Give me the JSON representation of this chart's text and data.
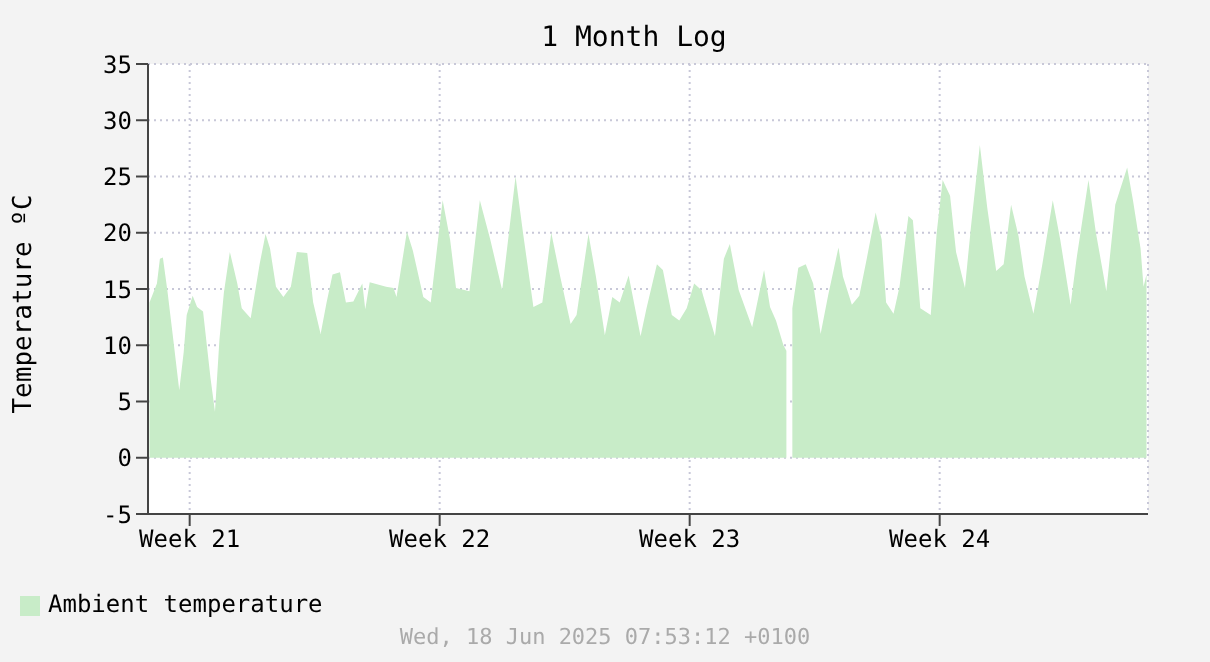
{
  "chart_data": {
    "type": "area",
    "title": "1 Month Log",
    "ylabel": "Temperature ºC",
    "annotations": [
      "Wed, 18 Jun 2025 07:53:12 +0100"
    ],
    "xlim": [
      "2025-05-21T08:00",
      "2025-06-18T08:00"
    ],
    "xticks": [
      {
        "value": "2025-05-22T12:00",
        "label": "Week 21"
      },
      {
        "value": "2025-05-29T12:00",
        "label": "Week 22"
      },
      {
        "value": "2025-06-05T12:00",
        "label": "Week 23"
      },
      {
        "value": "2025-06-12T12:00",
        "label": "Week 24"
      }
    ],
    "ylim": [
      -5,
      35
    ],
    "yticks": [
      -5,
      0,
      5,
      10,
      15,
      20,
      25,
      30,
      35
    ],
    "grid": true,
    "legend": "bottom left",
    "series": [
      {
        "name": "Ambient temperature",
        "color": "#c8ecc8",
        "x": [
          "2025-05-21T09:00",
          "2025-05-21T14:00",
          "2025-05-21T16:00",
          "2025-05-21T18:00",
          "2025-05-21T21:00",
          "2025-05-22T01:00",
          "2025-05-22T05:00",
          "2025-05-22T08:00",
          "2025-05-22T10:00",
          "2025-05-22T14:00",
          "2025-05-22T17:00",
          "2025-05-22T21:00",
          "2025-05-23T02:00",
          "2025-05-23T05:00",
          "2025-05-23T08:00",
          "2025-05-23T11:00",
          "2025-05-23T15:00",
          "2025-05-23T20:00",
          "2025-05-23T23:00",
          "2025-05-24T05:00",
          "2025-05-24T11:00",
          "2025-05-24T15:00",
          "2025-05-24T18:00",
          "2025-05-24T22:00",
          "2025-05-25T03:00",
          "2025-05-25T08:00",
          "2025-05-25T12:00",
          "2025-05-25T19:00",
          "2025-05-25T23:00",
          "2025-05-26T04:00",
          "2025-05-26T08:00",
          "2025-05-26T12:00",
          "2025-05-26T17:00",
          "2025-05-26T21:00",
          "2025-05-27T02:00",
          "2025-05-27T08:00",
          "2025-05-27T10:00",
          "2025-05-27T13:00",
          "2025-05-28T00:00",
          "2025-05-28T05:00",
          "2025-05-28T07:00",
          "2025-05-28T14:00",
          "2025-05-28T18:00",
          "2025-05-29T01:00",
          "2025-05-29T06:00",
          "2025-05-29T14:00",
          "2025-05-29T19:00",
          "2025-05-29T23:00",
          "2025-05-30T08:00",
          "2025-05-30T15:00",
          "2025-05-30T22:00",
          "2025-05-31T06:00",
          "2025-05-31T15:00",
          "2025-05-31T20:00",
          "2025-06-01T03:00",
          "2025-06-01T09:00",
          "2025-06-01T15:00",
          "2025-06-01T21:00",
          "2025-06-02T04:00",
          "2025-06-02T08:00",
          "2025-06-02T16:00",
          "2025-06-02T21:00",
          "2025-06-03T03:00",
          "2025-06-03T08:00",
          "2025-06-03T13:00",
          "2025-06-03T19:00",
          "2025-06-04T03:00",
          "2025-06-04T07:00",
          "2025-06-04T14:00",
          "2025-06-04T18:00",
          "2025-06-05T00:00",
          "2025-06-05T05:00",
          "2025-06-05T10:00",
          "2025-06-05T15:00",
          "2025-06-05T20:00",
          "2025-06-06T05:00",
          "2025-06-06T11:00",
          "2025-06-06T15:00",
          "2025-06-06T21:00",
          "2025-06-07T06:00",
          "2025-06-07T14:00",
          "2025-06-07T18:00",
          "2025-06-07T22:00",
          "2025-06-08T03:00",
          "2025-06-08T05:00",
          "2025-06-08T07:00",
          "2025-06-08T09:00",
          "2025-06-08T13:00",
          "2025-06-08T18:00",
          "2025-06-08T23:00",
          "2025-06-09T04:00",
          "2025-06-09T09:00",
          "2025-06-09T16:00",
          "2025-06-09T19:00",
          "2025-06-10T01:00",
          "2025-06-10T06:00",
          "2025-06-10T11:00",
          "2025-06-10T17:00",
          "2025-06-10T21:00",
          "2025-06-11T00:00",
          "2025-06-11T05:00",
          "2025-06-11T09:00",
          "2025-06-11T15:00",
          "2025-06-11T18:00",
          "2025-06-11T23:00",
          "2025-06-12T06:00",
          "2025-06-12T10:00",
          "2025-06-12T14:00",
          "2025-06-12T19:00",
          "2025-06-12T23:00",
          "2025-06-13T05:00",
          "2025-06-13T09:00",
          "2025-06-13T15:00",
          "2025-06-13T20:00",
          "2025-06-14T02:00",
          "2025-06-14T07:00",
          "2025-06-14T12:00",
          "2025-06-14T17:00",
          "2025-06-14T21:00",
          "2025-06-15T03:00",
          "2025-06-15T09:00",
          "2025-06-15T16:00",
          "2025-06-15T21:00",
          "2025-06-16T04:00",
          "2025-06-16T08:00",
          "2025-06-16T16:00",
          "2025-06-16T21:00",
          "2025-06-17T04:00",
          "2025-06-17T10:00",
          "2025-06-17T18:00",
          "2025-06-17T22:00",
          "2025-06-18T03:00",
          "2025-06-18T05:00",
          "2025-06-18T07:00"
        ],
        "values": [
          13.8,
          15.5,
          17.7,
          17.8,
          14.9,
          10.5,
          6.0,
          9.4,
          12.7,
          14.4,
          13.4,
          13.0,
          7.1,
          4.1,
          10.5,
          14.7,
          18.3,
          15.5,
          13.3,
          12.4,
          17.2,
          19.9,
          18.6,
          15.2,
          14.3,
          15.2,
          18.3,
          18.2,
          13.8,
          11.0,
          13.8,
          16.3,
          16.5,
          13.8,
          13.9,
          15.5,
          13.2,
          15.6,
          15.2,
          15.1,
          14.3,
          20.1,
          18.4,
          14.3,
          13.8,
          22.9,
          19.4,
          15.1,
          14.8,
          22.9,
          19.4,
          14.9,
          25.0,
          20.0,
          13.4,
          13.8,
          20.0,
          16.1,
          11.9,
          12.7,
          19.9,
          16.1,
          10.9,
          14.3,
          13.8,
          16.2,
          10.8,
          13.3,
          17.2,
          16.7,
          12.7,
          12.2,
          13.3,
          15.5,
          14.9,
          10.8,
          17.7,
          19.0,
          14.9,
          11.6,
          16.7,
          13.4,
          12.2,
          10.0,
          9.5,
          null,
          13.3,
          16.9,
          17.2,
          15.5,
          11.0,
          14.4,
          18.7,
          16.1,
          13.6,
          14.4,
          17.7,
          21.8,
          19.4,
          13.8,
          12.8,
          15.2,
          21.5,
          21.1,
          13.3,
          12.7,
          20.0,
          24.7,
          23.3,
          18.3,
          15.1,
          20.5,
          27.8,
          22.2,
          16.6,
          17.2,
          22.5,
          19.7,
          16.1,
          12.8,
          17.2,
          22.9,
          19.4,
          13.6,
          17.7,
          24.7,
          20.0,
          14.8,
          22.5,
          25.8,
          22.8,
          18.6,
          15.2,
          16.3
        ]
      }
    ]
  }
}
